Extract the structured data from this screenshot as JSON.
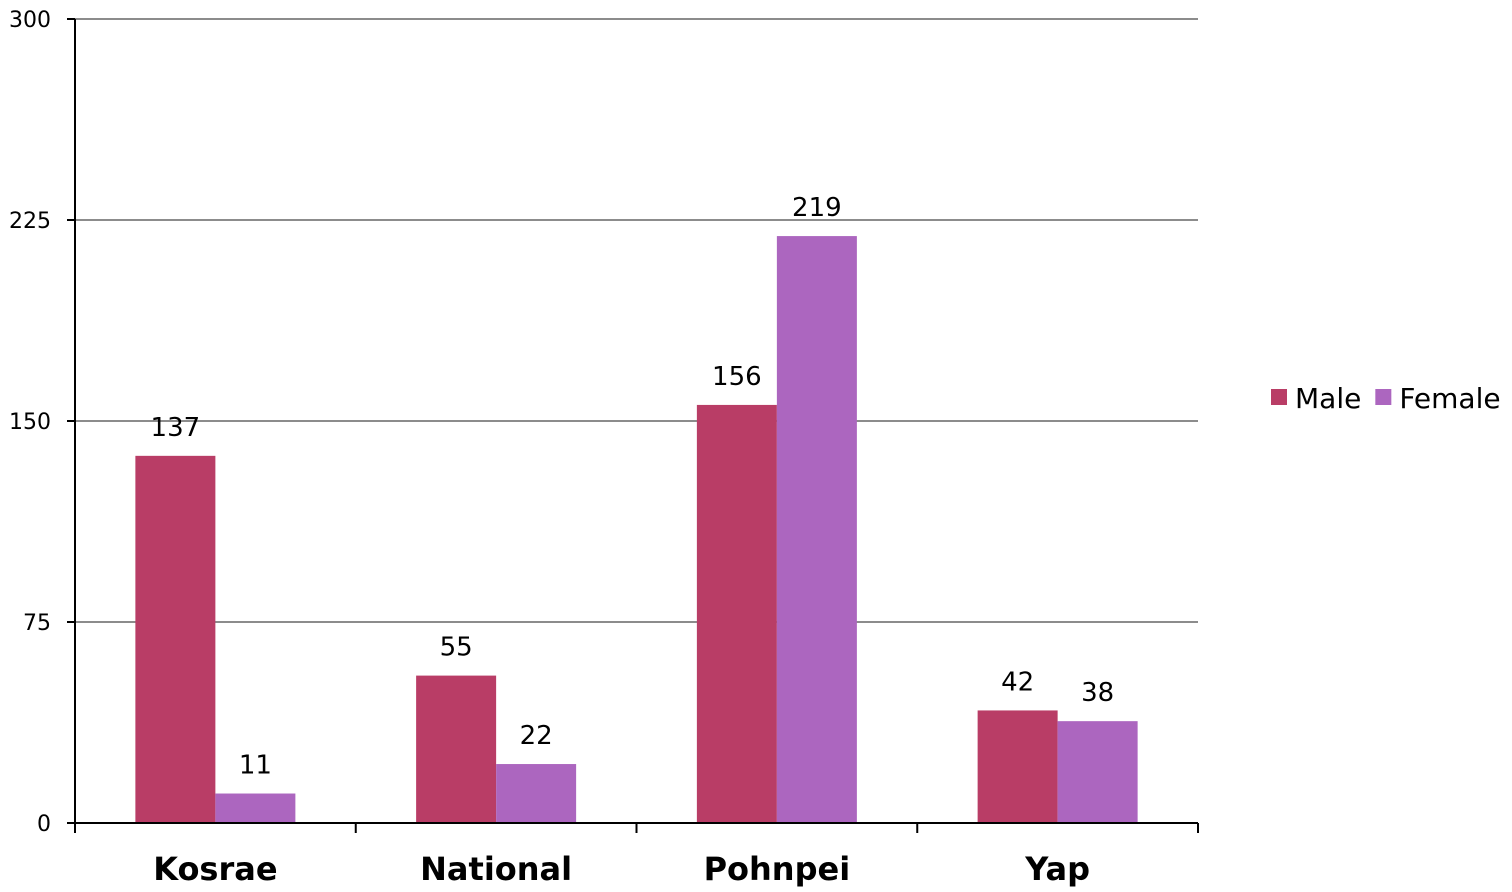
{
  "chart_data": {
    "type": "bar",
    "title": "",
    "xlabel": "",
    "ylabel": "",
    "categories": [
      "Kosrae",
      "National",
      "Pohnpei",
      "Yap"
    ],
    "series": [
      {
        "name": "Male",
        "values": [
          137,
          55,
          156,
          42
        ],
        "color": "#b93d66"
      },
      {
        "name": "Female",
        "values": [
          11,
          22,
          219,
          38
        ],
        "color": "#ac66bf"
      }
    ],
    "ylim": [
      0,
      300
    ],
    "yticks": [
      0,
      75,
      150,
      225,
      300
    ],
    "grid": true,
    "legend_position": "right",
    "data_labels": true
  }
}
